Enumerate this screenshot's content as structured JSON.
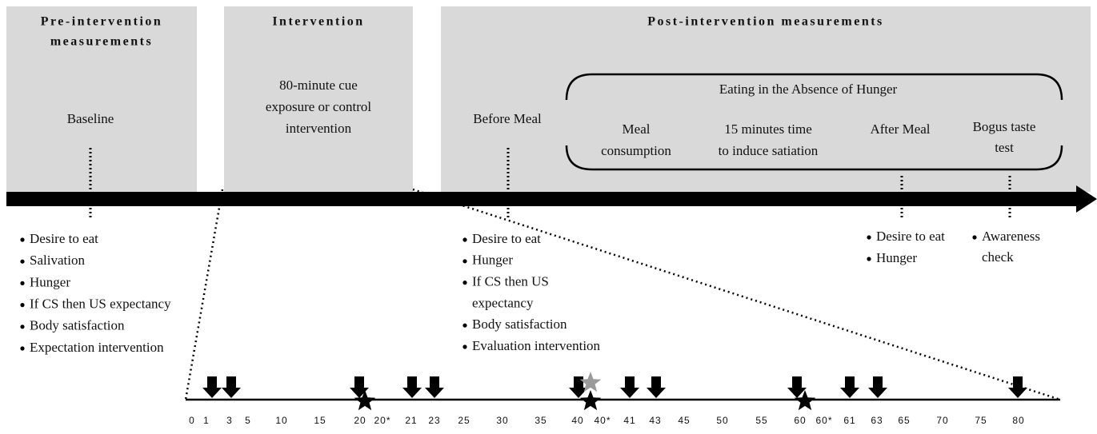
{
  "phases": [
    {
      "title_lines": [
        "Pre-intervention",
        "measurements"
      ]
    },
    {
      "title_lines": [
        "Intervention"
      ]
    },
    {
      "title_lines": [
        "Post-intervention measurements"
      ]
    }
  ],
  "labels": {
    "baseline": "Baseline",
    "intervention": [
      "80-minute cue",
      "exposure or control",
      "intervention"
    ],
    "before_meal": "Before Meal",
    "eah": "Eating in the Absence of Hunger",
    "meal": [
      "Meal",
      "consumption"
    ],
    "satiation": [
      "15 minutes time",
      "to induce satiation"
    ],
    "after_meal": "After Meal",
    "bogus": [
      "Bogus taste",
      "test"
    ]
  },
  "lists": {
    "baseline": [
      [
        "Desire to eat"
      ],
      [
        "Salivation"
      ],
      [
        "Hunger"
      ],
      [
        "If CS then US expectancy"
      ],
      [
        "Body satisfaction"
      ],
      [
        "Expectation intervention"
      ]
    ],
    "before_meal": [
      [
        "Desire to eat"
      ],
      [
        "Hunger"
      ],
      [
        "If CS then US",
        "expectancy"
      ],
      [
        "Body satisfaction"
      ],
      [
        "Evaluation intervention"
      ]
    ],
    "after_meal": [
      [
        "Desire to eat"
      ],
      [
        "Hunger"
      ]
    ],
    "bogus": [
      [
        "Awareness",
        "check"
      ]
    ]
  },
  "timeline_ticks": [
    "0",
    "1",
    "3",
    "5",
    "10",
    "15",
    "20",
    "20*",
    "21",
    "23",
    "25",
    "30",
    "35",
    "40",
    "40*",
    "41",
    "43",
    "45",
    "50",
    "55",
    "60",
    "60*",
    "61",
    "63",
    "65",
    "70",
    "75",
    "80"
  ]
}
